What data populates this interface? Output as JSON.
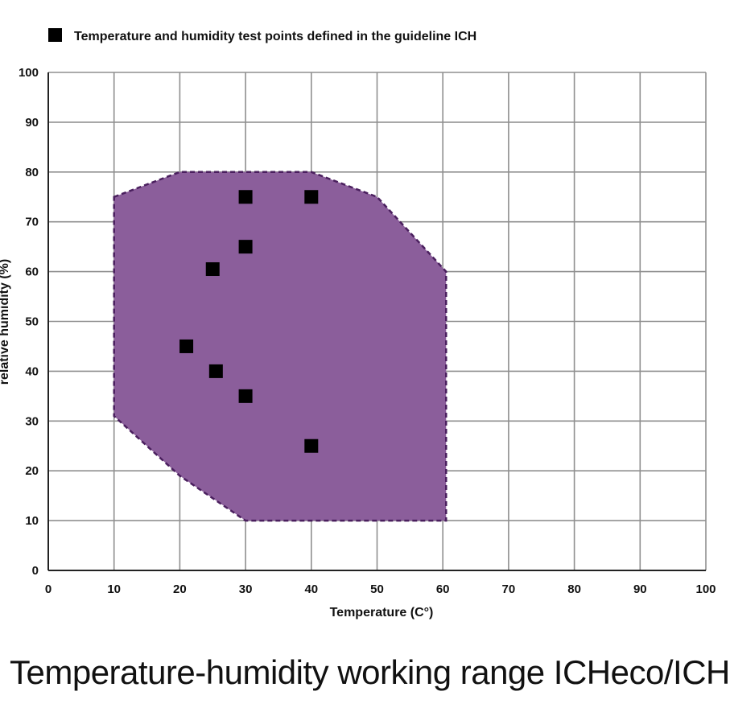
{
  "caption": "Temperature-humidity working range ICHeco/ICH",
  "chart_data": {
    "type": "scatter",
    "title": "",
    "xlabel": "Temperature (C°)",
    "ylabel": "relative humidity (%)",
    "xlim": [
      0,
      100
    ],
    "ylim": [
      0,
      100
    ],
    "x_ticks": [
      "0",
      "10",
      "20",
      "30",
      "40",
      "50",
      "60",
      "70",
      "80",
      "90",
      "100"
    ],
    "y_ticks": [
      "0",
      "10",
      "20",
      "30",
      "40",
      "50",
      "60",
      "70",
      "80",
      "90",
      "100"
    ],
    "grid": true,
    "legend": {
      "position": "top-left",
      "entries": [
        "Temperature and humidity test points defined in the guideline ICH"
      ]
    },
    "colors": {
      "region": "#8b5e9b",
      "region_border": "#4a1f5e",
      "marker": "#000000"
    },
    "working_range": [
      [
        10,
        75
      ],
      [
        20,
        80
      ],
      [
        40,
        80
      ],
      [
        50,
        75
      ],
      [
        60.5,
        60
      ],
      [
        60.5,
        10
      ],
      [
        30,
        10
      ],
      [
        20,
        19
      ],
      [
        10,
        31
      ]
    ],
    "series": [
      {
        "name": "Temperature and humidity test points defined in the guideline ICH",
        "points": [
          [
            30,
            75
          ],
          [
            40,
            75
          ],
          [
            30,
            65
          ],
          [
            25,
            60.5
          ],
          [
            21,
            45
          ],
          [
            25.5,
            40
          ],
          [
            30,
            35
          ],
          [
            40,
            25
          ]
        ]
      }
    ]
  }
}
